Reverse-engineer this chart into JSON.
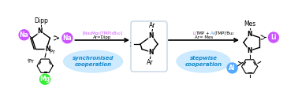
{
  "bg_color": "#ffffff",
  "colors": {
    "purple": "#cc55ff",
    "green": "#33ee33",
    "blue": "#55aaff",
    "black": "#000000",
    "light_blue_bubble": "#c8e8ff",
    "box_border": "#b0c4d8",
    "green_text": "#00cc00",
    "blue_text": "#55aaff",
    "purple_text": "#cc55ff"
  },
  "left_reagent_line1": "[Na₄Mg₂(TMP)₆Bu₂]",
  "left_reagent_line2": "Ar=Dipp",
  "right_reagent_line1a": "Li",
  "right_reagent_line1b": "TMP + ",
  "right_reagent_line1c": "Al",
  "right_reagent_line1d": "(TMP)ⁱBu₂",
  "right_reagent_line2": "Ar= Mes",
  "bubble_left_text": "synchronised\ncooperation",
  "bubble_right_text": "stepwise\ncooperation",
  "dipp_label": "Dipp",
  "mes_label": "Mes",
  "na_label": "Na",
  "mg_label": "Mg",
  "li_label": "Li",
  "al_label": "Al",
  "ar_label": "Ar",
  "ipr_label": "iPr"
}
